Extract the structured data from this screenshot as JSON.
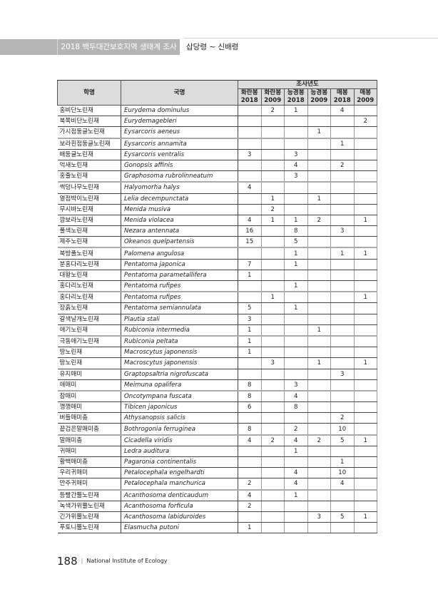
{
  "header": {
    "report_title": "2018 백두대간보호지역 생태계 조사",
    "section": "삽당령 ~ 신배령"
  },
  "table": {
    "col_korean": "학명",
    "col_scientific": "국명",
    "group_header": "조사년도",
    "sub_headers": [
      [
        "화란봉",
        "2018"
      ],
      [
        "화란봉",
        "2009"
      ],
      [
        "능경봉",
        "2018"
      ],
      [
        "능경봉",
        "2009"
      ],
      [
        "매봉",
        "2018"
      ],
      [
        "매봉",
        "2009"
      ]
    ],
    "rows": [
      {
        "ko": "홍비단노린재",
        "sci": "Eurydema dominulus",
        "v": [
          "",
          "2",
          "1",
          "",
          "4",
          ""
        ]
      },
      {
        "ko": "북쪽비단노린재",
        "sci": "Eurydemagebleri",
        "v": [
          "",
          "",
          "",
          "",
          "",
          "2"
        ]
      },
      {
        "ko": "가시점둥글노린재",
        "sci": "Eysarcoris aeneus",
        "v": [
          "",
          "",
          "",
          "1",
          "",
          ""
        ]
      },
      {
        "ko": "보라흰점둥글노린재",
        "sci": "Eysarcoris annamita",
        "v": [
          "",
          "",
          "",
          "",
          "1",
          ""
        ]
      },
      {
        "ko": "배둥글노린재",
        "sci": "Eysarcoris ventralis",
        "v": [
          "3",
          "",
          "3",
          "",
          "",
          ""
        ]
      },
      {
        "ko": "억새노린재",
        "sci": "Gonopsis affinis",
        "v": [
          "",
          "",
          "4",
          "",
          "2",
          ""
        ]
      },
      {
        "ko": "홍줄노린재",
        "sci": "Graphosoma rubrolinneatum",
        "v": [
          "",
          "",
          "3",
          "",
          "",
          ""
        ]
      },
      {
        "ko": "썩덩나무노린재",
        "sci": "Halyomorha halys",
        "v": [
          "4",
          "",
          "",
          "",
          "",
          ""
        ]
      },
      {
        "ko": "열점박이노린재",
        "sci": "Lelia decempunctata",
        "v": [
          "",
          "1",
          "",
          "1",
          "",
          ""
        ]
      },
      {
        "ko": "무시바노린재",
        "sci": "Menida musiva",
        "v": [
          "",
          "2",
          "",
          "",
          "",
          ""
        ]
      },
      {
        "ko": "깜보라노린재",
        "sci": "Menida violacea",
        "v": [
          "4",
          "1",
          "1",
          "2",
          "",
          "1"
        ]
      },
      {
        "ko": "풀색노린재",
        "sci": "Nezara antennata",
        "v": [
          "16",
          "",
          "8",
          "",
          "3",
          ""
        ]
      },
      {
        "ko": "제주노린재",
        "sci": "Okeanos quelpartensis",
        "v": [
          "15",
          "",
          "5",
          "",
          "",
          ""
        ]
      },
      {
        "ko": "북방풀노린재",
        "sci": "Palomena angulosa",
        "v": [
          "",
          "",
          "1",
          "",
          "1",
          "1"
        ]
      },
      {
        "ko": "분홍다리노린재",
        "sci": "Pentatoma japonica",
        "v": [
          "7",
          "",
          "1",
          "",
          "",
          ""
        ]
      },
      {
        "ko": "대왕노린재",
        "sci": "Pentatoma parametallifera",
        "v": [
          "1",
          "",
          "",
          "",
          "",
          ""
        ]
      },
      {
        "ko": "홍다리노린재",
        "sci": "Pentatoma rufipes",
        "v": [
          "",
          "",
          "1",
          "",
          "",
          ""
        ]
      },
      {
        "ko": "홍다리노린재",
        "sci": "Pentatoma rufipes",
        "v": [
          "",
          "1",
          "",
          "",
          "",
          "1"
        ]
      },
      {
        "ko": "장흙노린재",
        "sci": "Pentatoma semiannulata",
        "v": [
          "5",
          "",
          "1",
          "",
          "",
          ""
        ]
      },
      {
        "ko": "갈색날개노린재",
        "sci": "Plautia stali",
        "v": [
          "3",
          "",
          "",
          "",
          "",
          ""
        ]
      },
      {
        "ko": "애기노린재",
        "sci": "Rubiconia intermedia",
        "v": [
          "1",
          "",
          "",
          "1",
          "",
          ""
        ]
      },
      {
        "ko": "극동애기노린재",
        "sci": "Rubiconia peltata",
        "v": [
          "1",
          "",
          "",
          "",
          "",
          ""
        ]
      },
      {
        "ko": "땅노린재",
        "sci": "Macroscytus japonensis",
        "v": [
          "1",
          "",
          "",
          "",
          "",
          ""
        ]
      },
      {
        "ko": "땅노린재",
        "sci": "Macroscytus japonensis",
        "v": [
          "",
          "3",
          "",
          "1",
          "",
          "1"
        ]
      },
      {
        "ko": "유지매미",
        "sci": "Graptopsaltria nigrofuscata",
        "v": [
          "",
          "",
          "",
          "",
          "3",
          ""
        ]
      },
      {
        "ko": "애매미",
        "sci": "Meimuna opalifera",
        "v": [
          "8",
          "",
          "3",
          "",
          "",
          ""
        ]
      },
      {
        "ko": "참매미",
        "sci": "Oncotympana fuscata",
        "v": [
          "8",
          "",
          "4",
          "",
          "",
          ""
        ]
      },
      {
        "ko": "깽깽매미",
        "sci": "Tibicen japonicus",
        "v": [
          "6",
          "",
          "8",
          "",
          "",
          ""
        ]
      },
      {
        "ko": "버들매미충",
        "sci": "Athysanopsis salicis",
        "v": [
          "",
          "",
          "",
          "",
          "2",
          ""
        ]
      },
      {
        "ko": "끝검은말매미충",
        "sci": "Bothrogonia ferruginea",
        "v": [
          "8",
          "",
          "2",
          "",
          "10",
          ""
        ]
      },
      {
        "ko": "말매미충",
        "sci": "Cicadella viridis",
        "v": [
          "4",
          "2",
          "4",
          "2",
          "5",
          "1"
        ]
      },
      {
        "ko": "귀매미",
        "sci": "Ledra auditura",
        "v": [
          "",
          "",
          "1",
          "",
          "",
          ""
        ]
      },
      {
        "ko": "황백매미충",
        "sci": "Pagaronia continentalis",
        "v": [
          "",
          "",
          "",
          "",
          "1",
          ""
        ]
      },
      {
        "ko": "우리귀매미",
        "sci": "Petalocephala engelhardti",
        "v": [
          "",
          "",
          "4",
          "",
          "10",
          ""
        ]
      },
      {
        "ko": "만주귀매미",
        "sci": "Petalocephala manchurica",
        "v": [
          "2",
          "",
          "4",
          "",
          "4",
          ""
        ]
      },
      {
        "ko": "등빨간뿔노린재",
        "sci": "Acanthosoma denticaudum",
        "v": [
          "4",
          "",
          "1",
          "",
          "",
          ""
        ]
      },
      {
        "ko": "녹색가위뿔노린재",
        "sci": "Acanthosoma forficula",
        "v": [
          "2",
          "",
          "",
          "",
          "",
          ""
        ]
      },
      {
        "ko": "긴가위뿔노린재",
        "sci": "Acanthosoma labiduroides",
        "v": [
          "",
          "",
          "",
          "3",
          "5",
          "1"
        ]
      },
      {
        "ko": "푸토니뿔노린재",
        "sci": "Elasmucha putoni",
        "v": [
          "1",
          "",
          "",
          "",
          "",
          ""
        ]
      }
    ]
  },
  "footer": {
    "page_number": "188",
    "separator": "|",
    "organization": "National Institute of Ecology"
  }
}
